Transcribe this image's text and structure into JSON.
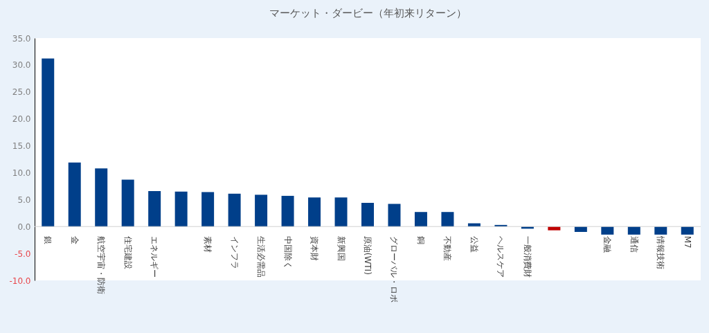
{
  "chart_data": {
    "type": "bar",
    "title": "マーケット・ダービー（年初来リターン）",
    "categories": [
      "銀",
      "金",
      "航空宇宙・防衛",
      "住宅建設",
      "エネルギー",
      null,
      "素材",
      "インフラ",
      "生活必需品",
      "中国除く",
      "資本財",
      "新興国",
      "原油(WTI)",
      "グローバル・ロボ",
      "銅",
      "不動産",
      "公益",
      "ヘルスケア",
      "一般消費財",
      null,
      null,
      "金融",
      "通信",
      "情報技術",
      "M7"
    ],
    "values": [
      31.2,
      11.9,
      10.8,
      8.7,
      6.6,
      6.5,
      6.4,
      6.1,
      5.9,
      5.7,
      5.4,
      5.4,
      4.4,
      4.2,
      2.7,
      2.7,
      0.6,
      0.3,
      -0.4,
      -0.7,
      -1.0,
      -1.5,
      -1.5,
      -1.5,
      -1.5
    ],
    "colors": [
      "#003f8a",
      "#003f8a",
      "#003f8a",
      "#003f8a",
      "#003f8a",
      "#003f8a",
      "#003f8a",
      "#003f8a",
      "#003f8a",
      "#003f8a",
      "#003f8a",
      "#003f8a",
      "#003f8a",
      "#003f8a",
      "#003f8a",
      "#003f8a",
      "#003f8a",
      "#003f8a",
      "#003f8a",
      "#c00000",
      "#003f8a",
      "#003f8a",
      "#003f8a",
      "#003f8a",
      "#003f8a"
    ],
    "ylim": [
      -10,
      35
    ],
    "yticks": [
      {
        "value": -10,
        "label": "-10.0"
      },
      {
        "value": -5,
        "label": "-5.0"
      },
      {
        "value": 0,
        "label": "0.0"
      },
      {
        "value": 5,
        "label": "5.0"
      },
      {
        "value": 10,
        "label": "10.0"
      },
      {
        "value": 15,
        "label": "15.0"
      },
      {
        "value": 20,
        "label": "20.0"
      },
      {
        "value": 25,
        "label": "25.0"
      },
      {
        "value": 30,
        "label": "30.0"
      },
      {
        "value": 35,
        "label": "35.0"
      }
    ],
    "ref_lines": [
      {
        "axis": "y",
        "value": 0,
        "color": "#d0d0d0"
      }
    ],
    "grid": false
  }
}
